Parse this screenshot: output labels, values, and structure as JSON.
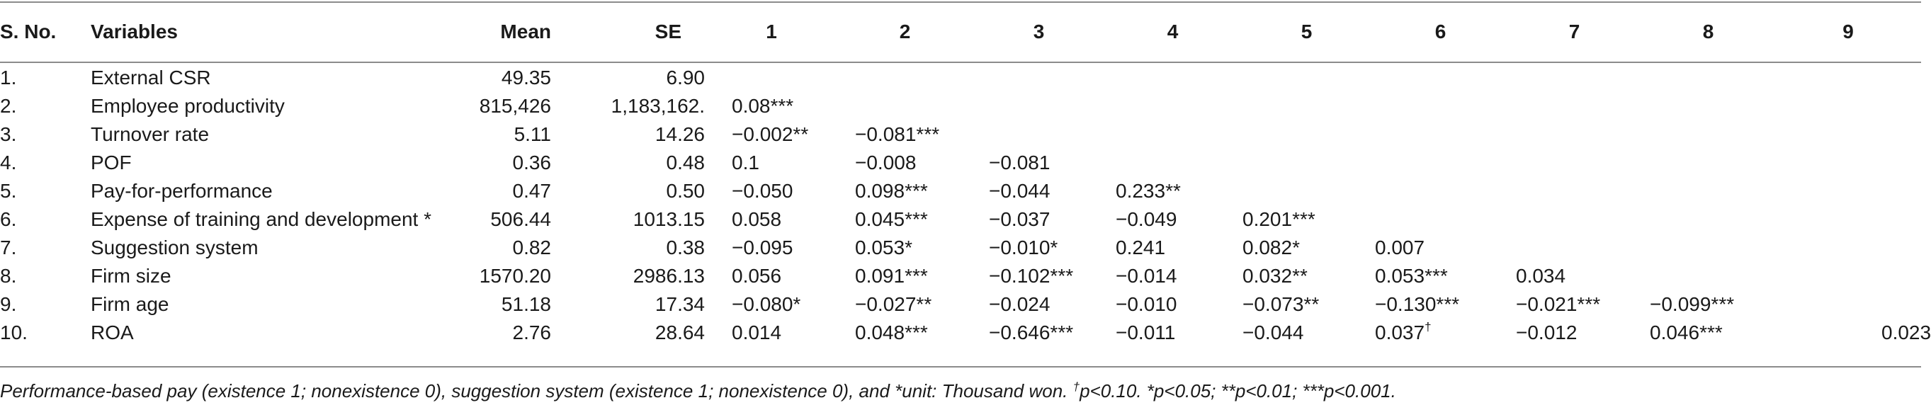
{
  "table": {
    "headers": {
      "sno": "S. No.",
      "variables": "Variables",
      "mean": "Mean",
      "se": "SE",
      "cols": [
        "1",
        "2",
        "3",
        "4",
        "5",
        "6",
        "7",
        "8",
        "9"
      ]
    },
    "rows": [
      {
        "sno": "1.",
        "variable": "External CSR",
        "mean": "49.35",
        "se": "6.90",
        "values": []
      },
      {
        "sno": "2.",
        "variable": "Employee productivity",
        "mean": "815,426",
        "se": "1,183,162.",
        "values": [
          "0.08***"
        ]
      },
      {
        "sno": "3.",
        "variable": "Turnover rate",
        "mean": "5.11",
        "se": "14.26",
        "values": [
          "−0.002**",
          "−0.081***"
        ]
      },
      {
        "sno": "4.",
        "variable": "POF",
        "mean": "0.36",
        "se": "0.48",
        "values": [
          "0.1",
          "−0.008",
          "−0.081"
        ]
      },
      {
        "sno": "5.",
        "variable": "Pay-for-performance",
        "mean": "0.47",
        "se": "0.50",
        "values": [
          "−0.050",
          "0.098***",
          "−0.044",
          "0.233**"
        ]
      },
      {
        "sno": "6.",
        "variable": "Expense of training and development *",
        "mean": "506.44",
        "se": "1013.15",
        "values": [
          "0.058",
          "0.045***",
          "−0.037",
          "−0.049",
          "0.201***"
        ]
      },
      {
        "sno": "7.",
        "variable": "Suggestion system",
        "mean": "0.82",
        "se": "0.38",
        "values": [
          "−0.095",
          "0.053*",
          "−0.010*",
          "0.241",
          "0.082*",
          "0.007"
        ]
      },
      {
        "sno": "8.",
        "variable": "Firm size",
        "mean": "1570.20",
        "se": "2986.13",
        "values": [
          "0.056",
          "0.091***",
          "−0.102***",
          "−0.014",
          "0.032**",
          "0.053***",
          "0.034"
        ]
      },
      {
        "sno": "9.",
        "variable": "Firm age",
        "mean": "51.18",
        "se": "17.34",
        "values": [
          "−0.080*",
          "−0.027**",
          "−0.024",
          "−0.010",
          "−0.073**",
          "−0.130***",
          "−0.021***",
          "−0.099***"
        ]
      },
      {
        "sno": "10.",
        "variable": "ROA",
        "mean": "2.76",
        "se": "28.64",
        "values": [
          "0.014",
          "0.048***",
          "−0.646***",
          "−0.011",
          "−0.044",
          "0.037",
          "−0.012",
          "0.046***",
          "0.023"
        ]
      }
    ],
    "dagger_cell": {
      "row": 9,
      "col": 5,
      "mark": "†"
    }
  },
  "footnote": {
    "part1": "Performance-based pay (existence 1; nonexistence 0), suggestion system (existence 1; nonexistence 0), and *unit: Thousand won. ",
    "dagger": "†",
    "part2": "p<0.10.  *p<0.05;  **p<0.01;  ***p<0.001."
  }
}
